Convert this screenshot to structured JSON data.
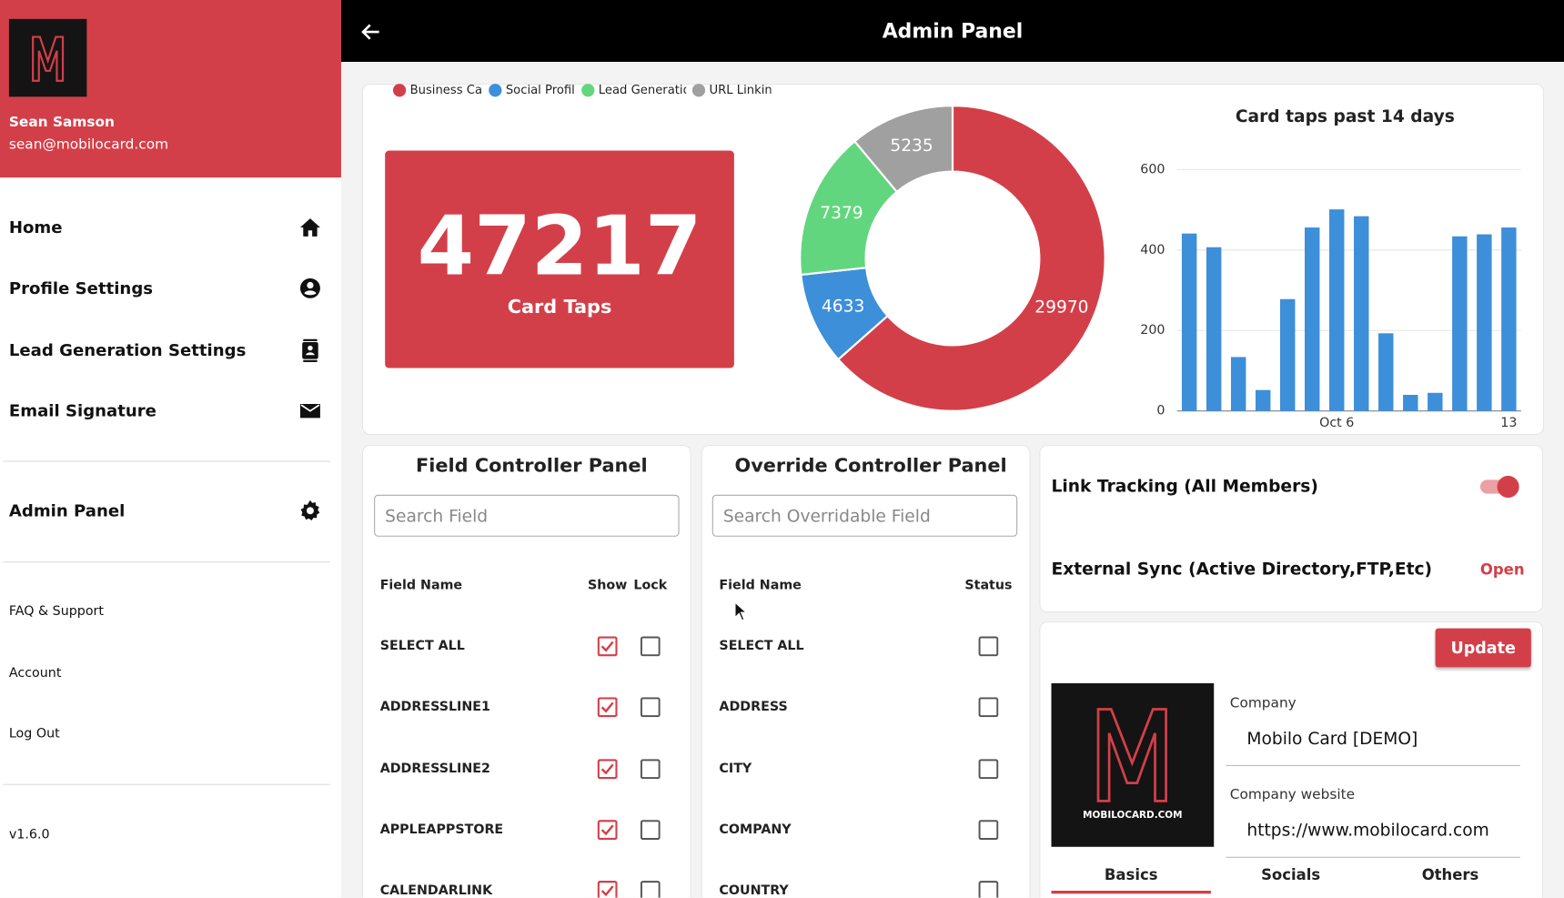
{
  "sidebar": {
    "user_name": "Sean Samson",
    "user_email": "sean@mobilocard.com",
    "main_nav": [
      "Home",
      "Profile Settings",
      "Lead Generation Settings",
      "Email Signature"
    ],
    "admin_nav": [
      "Admin Panel"
    ],
    "footer_nav": [
      "FAQ & Support",
      "Account",
      "Log Out"
    ],
    "version": "v1.6.0"
  },
  "header": {
    "title": "Admin Panel"
  },
  "stats": {
    "value": "47217",
    "label": "Card Taps"
  },
  "chart_data": [
    {
      "type": "donut",
      "categories": [
        "Business Card",
        "Social Profile",
        "Lead Generation",
        "URL Linking"
      ],
      "values": [
        29970,
        4633,
        7379,
        5235
      ],
      "colors": [
        "#d33f49",
        "#3d8fd9",
        "#62d67e",
        "#a0a0a0"
      ]
    },
    {
      "type": "bar",
      "title": "Card taps past 14 days",
      "categories": [
        null,
        null,
        null,
        null,
        null,
        null,
        "Oct 6",
        null,
        null,
        null,
        null,
        null,
        null,
        "13"
      ],
      "values": [
        441,
        407,
        134,
        52,
        278,
        456,
        501,
        484,
        193,
        40,
        45,
        434,
        439,
        456
      ],
      "color": "#3d8fd9",
      "ylim": [
        0,
        600
      ],
      "yticks": [
        0,
        200,
        400,
        600
      ],
      "grid": true
    }
  ],
  "field_panel": {
    "title": "Field Controller Panel",
    "search_placeholder": "Search Field",
    "columns": [
      "Field Name",
      "Show",
      "Lock"
    ],
    "rows": [
      {
        "name": "SELECT ALL",
        "show": true,
        "lock": false
      },
      {
        "name": "ADDRESSLINE1",
        "show": true,
        "lock": false
      },
      {
        "name": "ADDRESSLINE2",
        "show": true,
        "lock": false
      },
      {
        "name": "APPLEAPPSTORE",
        "show": true,
        "lock": false
      },
      {
        "name": "CALENDARLINK",
        "show": true,
        "lock": false
      }
    ]
  },
  "override_panel": {
    "title": "Override Controller Panel",
    "search_placeholder": "Search Overridable Field",
    "columns": [
      "Field Name",
      "Status"
    ],
    "rows": [
      {
        "name": "SELECT ALL",
        "status": false
      },
      {
        "name": "ADDRESS",
        "status": false
      },
      {
        "name": "CITY",
        "status": false
      },
      {
        "name": "COMPANY",
        "status": false
      },
      {
        "name": "COUNTRY",
        "status": false
      }
    ]
  },
  "settings": {
    "link_tracking": {
      "label": "Link Tracking (All Members)",
      "enabled": true
    },
    "external_sync": {
      "label": "External Sync (Active Directory,FTP,Etc)",
      "action": "Open"
    }
  },
  "company": {
    "update_button": "Update",
    "logo_text": "MOBILOCARD.COM",
    "fields": [
      {
        "label": "Company",
        "value": "Mobilo Card [DEMO]"
      },
      {
        "label": "Company website",
        "value": "https://www.mobilocard.com"
      }
    ],
    "tabs": [
      "Basics",
      "Socials",
      "Others"
    ],
    "active_tab": 0
  }
}
